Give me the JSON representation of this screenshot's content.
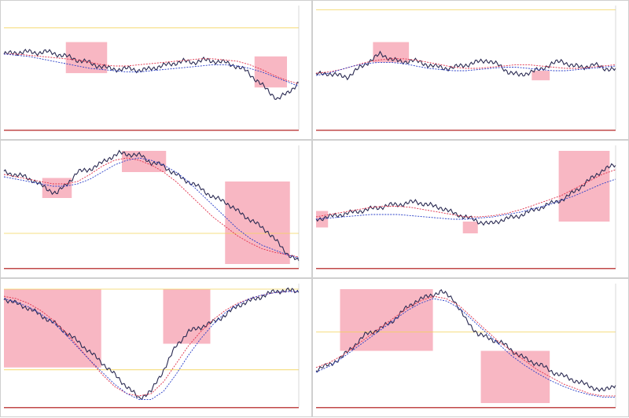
{
  "colors": {
    "background": "#ffffff",
    "price": "#2a2a52",
    "ma_slow_red": "#e0304a",
    "ma_fast_blue": "#2a3fc8",
    "zone_fill": "#f7aab8",
    "hline_yellow": "#f3d45a",
    "hline_gray": "#555555",
    "axis_text": "#7a7a7a"
  },
  "chart_data": [
    {
      "type": "line",
      "title": "",
      "series": [
        {
          "values": [
            0.62,
            0.63,
            0.64,
            0.63,
            0.64,
            0.62,
            0.6,
            0.57,
            0.55,
            0.52,
            0.5,
            0.49,
            0.5,
            0.48,
            0.5,
            0.52,
            0.54,
            0.56,
            0.55,
            0.57,
            0.56,
            0.55,
            0.52,
            0.48,
            0.4,
            0.32,
            0.24,
            0.3,
            0.38
          ]
        },
        {
          "values": [
            0.62,
            0.62,
            0.61,
            0.6,
            0.59,
            0.58,
            0.57,
            0.55,
            0.53,
            0.52,
            0.52,
            0.53,
            0.54,
            0.55,
            0.56,
            0.57,
            0.58,
            0.58,
            0.57,
            0.56,
            0.53,
            0.49,
            0.44,
            0.4,
            0.37
          ]
        },
        {
          "values": [
            0.62,
            0.61,
            0.6,
            0.58,
            0.56,
            0.54,
            0.52,
            0.5,
            0.49,
            0.48,
            0.47,
            0.47,
            0.48,
            0.49,
            0.5,
            0.51,
            0.52,
            0.53,
            0.53,
            0.52,
            0.5,
            0.47,
            0.43,
            0.39,
            0.35
          ]
        }
      ],
      "zones": [
        {
          "x": [
            0.21,
            0.35
          ],
          "y": [
            0.46,
            0.72
          ]
        },
        {
          "x": [
            0.85,
            0.96
          ],
          "y": [
            0.34,
            0.6
          ]
        }
      ],
      "hlines": [
        {
          "y": 0.84,
          "color_key": "hline_yellow"
        }
      ]
    },
    {
      "type": "line",
      "title": "",
      "series": [
        {
          "values": [
            0.45,
            0.46,
            0.44,
            0.43,
            0.5,
            0.56,
            0.62,
            0.58,
            0.55,
            0.57,
            0.54,
            0.52,
            0.5,
            0.51,
            0.53,
            0.55,
            0.57,
            0.53,
            0.47,
            0.44,
            0.47,
            0.49,
            0.54,
            0.56,
            0.52,
            0.51,
            0.53,
            0.5,
            0.49
          ]
        },
        {
          "values": [
            0.46,
            0.47,
            0.49,
            0.52,
            0.55,
            0.57,
            0.58,
            0.58,
            0.57,
            0.55,
            0.53,
            0.51,
            0.5,
            0.5,
            0.51,
            0.52,
            0.53,
            0.53,
            0.52,
            0.51,
            0.5,
            0.5,
            0.51,
            0.52,
            0.53
          ]
        },
        {
          "values": [
            0.44,
            0.46,
            0.49,
            0.52,
            0.54,
            0.55,
            0.55,
            0.54,
            0.52,
            0.5,
            0.49,
            0.48,
            0.48,
            0.49,
            0.5,
            0.51,
            0.51,
            0.5,
            0.49,
            0.48,
            0.48,
            0.49,
            0.5,
            0.51,
            0.52
          ]
        }
      ],
      "zones": [
        {
          "x": [
            0.19,
            0.31
          ],
          "y": [
            0.55,
            0.72
          ]
        },
        {
          "x": [
            0.72,
            0.78
          ],
          "y": [
            0.4,
            0.48
          ]
        }
      ],
      "hlines": [
        {
          "y": 0.99,
          "color_key": "hline_yellow"
        }
      ]
    },
    {
      "type": "line",
      "title": "",
      "series": [
        {
          "values": [
            0.8,
            0.78,
            0.76,
            0.72,
            0.66,
            0.62,
            0.7,
            0.8,
            0.82,
            0.86,
            0.92,
            0.96,
            0.95,
            0.94,
            0.88,
            0.86,
            0.8,
            0.74,
            0.7,
            0.64,
            0.58,
            0.55,
            0.48,
            0.42,
            0.36,
            0.3,
            0.2,
            0.1,
            0.04
          ]
        },
        {
          "values": [
            0.78,
            0.76,
            0.74,
            0.72,
            0.7,
            0.7,
            0.72,
            0.78,
            0.85,
            0.9,
            0.92,
            0.9,
            0.86,
            0.8,
            0.72,
            0.62,
            0.52,
            0.42,
            0.34,
            0.26,
            0.2,
            0.15,
            0.12,
            0.1,
            0.08
          ]
        },
        {
          "values": [
            0.76,
            0.74,
            0.72,
            0.7,
            0.68,
            0.68,
            0.7,
            0.74,
            0.8,
            0.86,
            0.9,
            0.92,
            0.9,
            0.86,
            0.8,
            0.72,
            0.62,
            0.52,
            0.42,
            0.32,
            0.24,
            0.18,
            0.14,
            0.1,
            0.07
          ]
        }
      ],
      "zones": [
        {
          "x": [
            0.13,
            0.23
          ],
          "y": [
            0.58,
            0.75
          ]
        },
        {
          "x": [
            0.4,
            0.55
          ],
          "y": [
            0.8,
            0.98
          ]
        },
        {
          "x": [
            0.75,
            0.97
          ],
          "y": [
            0.02,
            0.72
          ]
        }
      ],
      "hlines": [
        {
          "y": 0.28,
          "color_key": "hline_yellow"
        }
      ]
    },
    {
      "type": "line",
      "title": "",
      "series": [
        {
          "values": [
            0.4,
            0.42,
            0.44,
            0.46,
            0.48,
            0.5,
            0.52,
            0.53,
            0.55,
            0.52,
            0.5,
            0.45,
            0.42,
            0.38,
            0.36,
            0.4,
            0.42,
            0.46,
            0.5,
            0.54,
            0.58,
            0.66,
            0.74,
            0.82,
            0.86
          ]
        },
        {
          "values": [
            0.42,
            0.44,
            0.46,
            0.48,
            0.5,
            0.51,
            0.51,
            0.5,
            0.48,
            0.46,
            0.44,
            0.42,
            0.42,
            0.43,
            0.45,
            0.48,
            0.52,
            0.56,
            0.6,
            0.66,
            0.72,
            0.78,
            0.82
          ]
        },
        {
          "values": [
            0.4,
            0.41,
            0.42,
            0.43,
            0.44,
            0.44,
            0.44,
            0.43,
            0.42,
            0.41,
            0.4,
            0.4,
            0.41,
            0.42,
            0.44,
            0.46,
            0.49,
            0.52,
            0.56,
            0.6,
            0.65,
            0.7,
            0.74
          ]
        }
      ],
      "zones": [
        {
          "x": [
            0.0,
            0.04
          ],
          "y": [
            0.33,
            0.47
          ]
        },
        {
          "x": [
            0.49,
            0.54
          ],
          "y": [
            0.28,
            0.38
          ]
        },
        {
          "x": [
            0.81,
            0.98
          ],
          "y": [
            0.38,
            0.98
          ]
        }
      ],
      "hlines": []
    },
    {
      "type": "line",
      "title": "",
      "series": [
        {
          "values": [
            0.9,
            0.86,
            0.82,
            0.76,
            0.7,
            0.62,
            0.54,
            0.45,
            0.36,
            0.26,
            0.16,
            0.06,
            0.12,
            0.3,
            0.5,
            0.62,
            0.66,
            0.7,
            0.76,
            0.84,
            0.88,
            0.92,
            0.96,
            0.97,
            0.96
          ]
        },
        {
          "values": [
            0.92,
            0.9,
            0.86,
            0.8,
            0.72,
            0.62,
            0.5,
            0.38,
            0.26,
            0.16,
            0.1,
            0.08,
            0.1,
            0.2,
            0.35,
            0.5,
            0.62,
            0.72,
            0.8,
            0.86,
            0.9,
            0.93,
            0.95,
            0.96,
            0.96
          ]
        },
        {
          "values": [
            0.9,
            0.87,
            0.83,
            0.77,
            0.7,
            0.6,
            0.49,
            0.38,
            0.28,
            0.18,
            0.1,
            0.05,
            0.05,
            0.12,
            0.26,
            0.42,
            0.56,
            0.68,
            0.78,
            0.85,
            0.9,
            0.93,
            0.95,
            0.96,
            0.96
          ]
        }
      ],
      "zones": [
        {
          "x": [
            0.0,
            0.33
          ],
          "y": [
            0.32,
            0.98
          ]
        },
        {
          "x": [
            0.54,
            0.7
          ],
          "y": [
            0.52,
            0.98
          ]
        }
      ],
      "hlines": [
        {
          "y": 0.98,
          "color_key": "hline_yellow"
        },
        {
          "y": 0.3,
          "color_key": "hline_yellow"
        }
      ]
    },
    {
      "type": "line",
      "title": "",
      "series": [
        {
          "values": [
            0.3,
            0.34,
            0.4,
            0.5,
            0.6,
            0.64,
            0.7,
            0.8,
            0.88,
            0.92,
            0.96,
            0.9,
            0.72,
            0.6,
            0.56,
            0.52,
            0.44,
            0.38,
            0.34,
            0.28,
            0.24,
            0.2,
            0.16,
            0.12,
            0.18
          ]
        },
        {
          "values": [
            0.32,
            0.36,
            0.42,
            0.5,
            0.58,
            0.66,
            0.74,
            0.82,
            0.88,
            0.92,
            0.9,
            0.84,
            0.74,
            0.64,
            0.54,
            0.46,
            0.38,
            0.3,
            0.24,
            0.18,
            0.14,
            0.1,
            0.08,
            0.08
          ]
        },
        {
          "values": [
            0.28,
            0.33,
            0.4,
            0.48,
            0.56,
            0.64,
            0.72,
            0.8,
            0.86,
            0.9,
            0.88,
            0.82,
            0.72,
            0.62,
            0.52,
            0.42,
            0.34,
            0.27,
            0.21,
            0.16,
            0.12,
            0.09,
            0.07,
            0.07
          ]
        }
      ],
      "zones": [
        {
          "x": [
            0.08,
            0.39
          ],
          "y": [
            0.46,
            0.98
          ]
        },
        {
          "x": [
            0.55,
            0.78
          ],
          "y": [
            0.02,
            0.46
          ]
        }
      ],
      "hlines": [
        {
          "y": 0.62,
          "color_key": "hline_yellow"
        }
      ]
    }
  ]
}
